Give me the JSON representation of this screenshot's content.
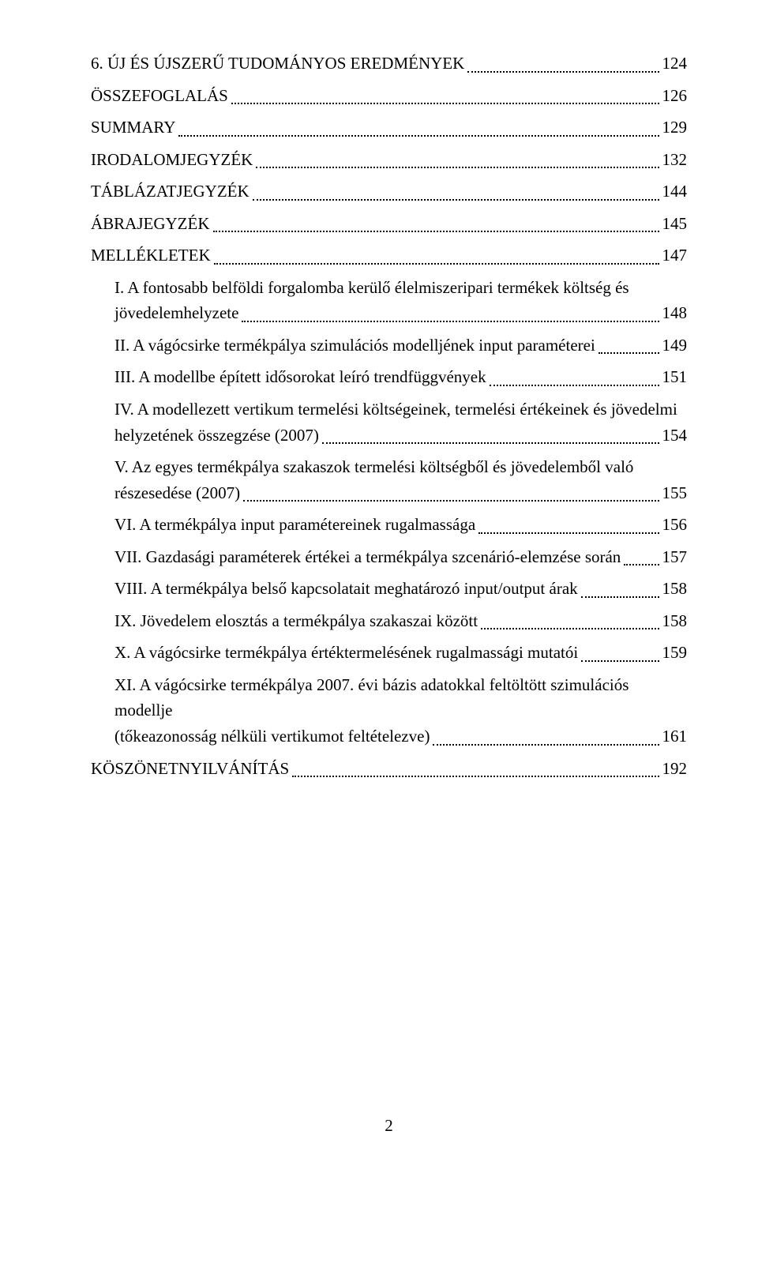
{
  "entries": [
    {
      "label": "6. ÚJ ÉS ÚJSZERŰ TUDOMÁNYOS EREDMÉNYEK",
      "page": "124",
      "indent": false
    },
    {
      "label": "ÖSSZEFOGLALÁS",
      "page": "126",
      "indent": false
    },
    {
      "label": "SUMMARY",
      "page": "129",
      "indent": false
    },
    {
      "label": "IRODALOMJEGYZÉK",
      "page": "132",
      "indent": false
    },
    {
      "label": "TÁBLÁZATJEGYZÉK",
      "page": "144",
      "indent": false
    },
    {
      "label": "ÁBRAJEGYZÉK",
      "page": "145",
      "indent": false
    },
    {
      "label": "MELLÉKLETEK",
      "page": "147",
      "indent": false
    },
    {
      "label_pre": "I. A fontosabb belföldi forgalomba kerülő élelmiszeripari termékek költség és",
      "label_last": "jövedelemhelyzete",
      "page": "148",
      "indent": true,
      "multiline": true
    },
    {
      "label": "II. A vágócsirke termékpálya szimulációs modelljének input paraméterei",
      "page": "149",
      "indent": true
    },
    {
      "label": "III. A modellbe épített idősorokat leíró trendfüggvények",
      "page": "151",
      "indent": true
    },
    {
      "label_pre": "IV. A modellezett vertikum termelési költségeinek, termelési értékeinek és jövedelmi",
      "label_last": "helyzetének összegzése (2007)",
      "page": "154",
      "indent": true,
      "multiline": true
    },
    {
      "label_pre": "V. Az egyes termékpálya szakaszok termelési költségből és jövedelemből való",
      "label_last": "részesedése (2007)",
      "page": "155",
      "indent": true,
      "multiline": true
    },
    {
      "label": "VI. A termékpálya input paramétereinek rugalmassága",
      "page": "156",
      "indent": true
    },
    {
      "label": "VII. Gazdasági paraméterek értékei a termékpálya szcenárió-elemzése során",
      "page": "157",
      "indent": true
    },
    {
      "label": "VIII. A termékpálya belső kapcsolatait meghatározó input/output árak",
      "page": "158",
      "indent": true
    },
    {
      "label": "IX. Jövedelem elosztás a termékpálya szakaszai között",
      "page": "158",
      "indent": true
    },
    {
      "label": "X. A vágócsirke termékpálya értéktermelésének rugalmassági mutatói",
      "page": "159",
      "indent": true
    },
    {
      "label_pre": "XI. A vágócsirke termékpálya 2007. évi bázis adatokkal feltöltött szimulációs modellje",
      "label_last": "(tőkeazonosság nélküli vertikumot feltételezve)",
      "page": "161",
      "indent": true,
      "multiline": true
    },
    {
      "label": "KÖSZÖNETNYILVÁNÍTÁS",
      "page": "192",
      "indent": false
    }
  ],
  "page_number": "2"
}
